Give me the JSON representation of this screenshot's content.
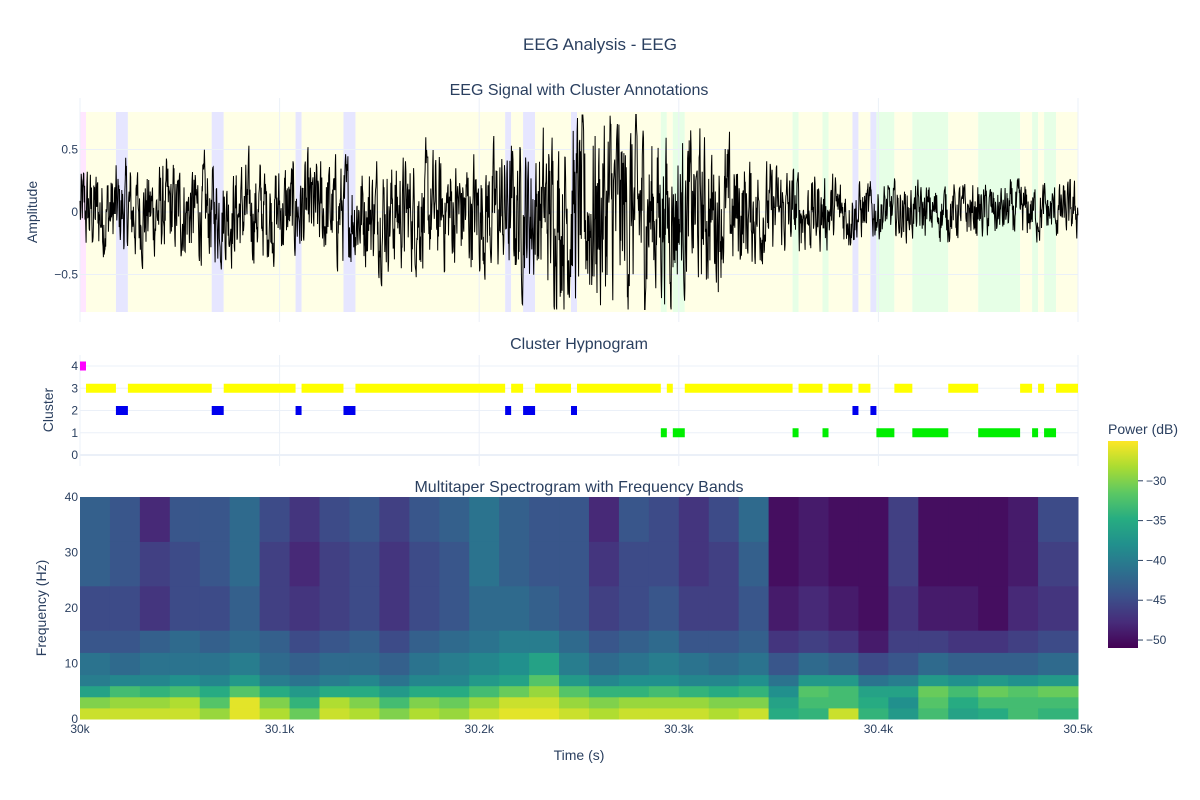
{
  "figure_title": "EEG Analysis - EEG",
  "x_axis": {
    "label": "Time (s)",
    "range": [
      30000,
      30500
    ],
    "ticks": [
      {
        "value": 30000,
        "label": "30k"
      },
      {
        "value": 30100,
        "label": "30.1k"
      },
      {
        "value": 30200,
        "label": "30.2k"
      },
      {
        "value": 30300,
        "label": "30.3k"
      },
      {
        "value": 30400,
        "label": "30.4k"
      },
      {
        "value": 30500,
        "label": "30.5k"
      }
    ]
  },
  "colors": {
    "cluster_0": "#d0d0ff",
    "cluster_1": "#00ee00",
    "cluster_2": "#0000ee",
    "cluster_3": "#ffff00",
    "cluster_4": "#ff00ff",
    "shade_1": "#e6ffe6",
    "shade_2": "#e6e6ff",
    "shade_3": "#ffffe6",
    "shade_4": "#ffe6ff",
    "signal": "#000000",
    "title": "#2a3f5f",
    "grid": "#ebf0f8"
  },
  "chart_data": [
    {
      "type": "line",
      "title": "EEG Signal with Cluster Annotations",
      "xlabel": "",
      "ylabel": "Amplitude",
      "ylim": [
        -0.8,
        0.8
      ],
      "yticks": [
        {
          "value": 0.5,
          "label": "0.5"
        },
        {
          "value": 0,
          "label": "0"
        },
        {
          "value": -0.5,
          "label": "−0.5"
        }
      ],
      "series_description_amplitude_envelope": [
        [
          30000,
          0.3
        ],
        [
          30100,
          0.32
        ],
        [
          30200,
          0.38
        ],
        [
          30230,
          0.5
        ],
        [
          30260,
          0.7
        ],
        [
          30290,
          0.55
        ],
        [
          30320,
          0.45
        ],
        [
          30345,
          0.3
        ],
        [
          30400,
          0.18
        ],
        [
          30500,
          0.18
        ]
      ],
      "grid": true
    },
    {
      "type": "scatter",
      "title": "Cluster Hypnogram",
      "xlabel": "",
      "ylabel": "Cluster",
      "ylim": [
        0,
        4
      ],
      "yticks": [
        {
          "value": 4,
          "label": "4"
        },
        {
          "value": 3,
          "label": "3"
        },
        {
          "value": 2,
          "label": "2"
        },
        {
          "value": 1,
          "label": "1"
        },
        {
          "value": 0,
          "label": "0"
        }
      ],
      "segments": [
        {
          "start": 30000,
          "end": 30003,
          "cluster": 4
        },
        {
          "start": 30003,
          "end": 30018,
          "cluster": 3
        },
        {
          "start": 30018,
          "end": 30024,
          "cluster": 2
        },
        {
          "start": 30024,
          "end": 30066,
          "cluster": 3
        },
        {
          "start": 30066,
          "end": 30072,
          "cluster": 2
        },
        {
          "start": 30072,
          "end": 30108,
          "cluster": 3
        },
        {
          "start": 30108,
          "end": 30111,
          "cluster": 2
        },
        {
          "start": 30111,
          "end": 30132,
          "cluster": 3
        },
        {
          "start": 30132,
          "end": 30138,
          "cluster": 2
        },
        {
          "start": 30138,
          "end": 30213,
          "cluster": 3
        },
        {
          "start": 30213,
          "end": 30216,
          "cluster": 2
        },
        {
          "start": 30216,
          "end": 30222,
          "cluster": 3
        },
        {
          "start": 30222,
          "end": 30228,
          "cluster": 2
        },
        {
          "start": 30228,
          "end": 30246,
          "cluster": 3
        },
        {
          "start": 30246,
          "end": 30249,
          "cluster": 2
        },
        {
          "start": 30249,
          "end": 30291,
          "cluster": 3
        },
        {
          "start": 30291,
          "end": 30294,
          "cluster": 1
        },
        {
          "start": 30294,
          "end": 30297,
          "cluster": 3
        },
        {
          "start": 30297,
          "end": 30303,
          "cluster": 1
        },
        {
          "start": 30303,
          "end": 30357,
          "cluster": 3
        },
        {
          "start": 30357,
          "end": 30360,
          "cluster": 1
        },
        {
          "start": 30360,
          "end": 30372,
          "cluster": 3
        },
        {
          "start": 30372,
          "end": 30375,
          "cluster": 1
        },
        {
          "start": 30375,
          "end": 30387,
          "cluster": 3
        },
        {
          "start": 30387,
          "end": 30390,
          "cluster": 2
        },
        {
          "start": 30390,
          "end": 30396,
          "cluster": 3
        },
        {
          "start": 30396,
          "end": 30399,
          "cluster": 2
        },
        {
          "start": 30399,
          "end": 30408,
          "cluster": 1
        },
        {
          "start": 30408,
          "end": 30417,
          "cluster": 3
        },
        {
          "start": 30417,
          "end": 30435,
          "cluster": 1
        },
        {
          "start": 30435,
          "end": 30450,
          "cluster": 3
        },
        {
          "start": 30450,
          "end": 30471,
          "cluster": 1
        },
        {
          "start": 30471,
          "end": 30477,
          "cluster": 3
        },
        {
          "start": 30477,
          "end": 30480,
          "cluster": 1
        },
        {
          "start": 30480,
          "end": 30483,
          "cluster": 3
        },
        {
          "start": 30483,
          "end": 30489,
          "cluster": 1
        },
        {
          "start": 30489,
          "end": 30500,
          "cluster": 3
        }
      ],
      "grid": true
    },
    {
      "type": "heatmap",
      "title": "Multitaper Spectrogram with Frequency Bands",
      "xlabel": "Time (s)",
      "ylabel": "Frequency (Hz)",
      "ylim": [
        0,
        40
      ],
      "yticks": [
        {
          "value": 40,
          "label": "40"
        },
        {
          "value": 30,
          "label": "30"
        },
        {
          "value": 20,
          "label": "20"
        },
        {
          "value": 10,
          "label": "10"
        },
        {
          "value": 0,
          "label": "0"
        }
      ],
      "time_bins": [
        30000,
        30015,
        30030,
        30045,
        30060,
        30075,
        30090,
        30105,
        30120,
        30135,
        30150,
        30165,
        30180,
        30195,
        30210,
        30225,
        30240,
        30255,
        30270,
        30285,
        30300,
        30315,
        30330,
        30345,
        30360,
        30375,
        30390,
        30405,
        30420,
        30435,
        30450,
        30465,
        30480,
        30500
      ],
      "freq_bands_hz": [
        0,
        2,
        4,
        6,
        8,
        12,
        16,
        24,
        32,
        40
      ],
      "power_db": [
        [
          -27,
          -30,
          -36,
          -40,
          -41,
          -44,
          -45,
          -43,
          -43
        ],
        [
          -27,
          -29,
          -33,
          -39,
          -42,
          -44,
          -45,
          -44,
          -44
        ],
        [
          -27,
          -29,
          -34,
          -39,
          -41,
          -43,
          -47,
          -46,
          -48
        ],
        [
          -27,
          -28,
          -33,
          -38,
          -41,
          -42,
          -45,
          -45,
          -44
        ],
        [
          -29,
          -32,
          -35,
          -39,
          -41,
          -43,
          -45,
          -44,
          -44
        ],
        [
          -26,
          -26,
          -32,
          -37,
          -40,
          -42,
          -43,
          -42,
          -42
        ],
        [
          -28,
          -30,
          -35,
          -40,
          -42,
          -43,
          -46,
          -46,
          -45
        ],
        [
          -31,
          -34,
          -37,
          -41,
          -43,
          -45,
          -47,
          -48,
          -47
        ],
        [
          -27,
          -28,
          -35,
          -40,
          -42,
          -44,
          -46,
          -46,
          -45
        ],
        [
          -28,
          -30,
          -35,
          -39,
          -42,
          -43,
          -45,
          -45,
          -44
        ],
        [
          -30,
          -33,
          -37,
          -41,
          -43,
          -45,
          -47,
          -47,
          -46
        ],
        [
          -28,
          -30,
          -35,
          -39,
          -41,
          -43,
          -45,
          -45,
          -44
        ],
        [
          -29,
          -31,
          -35,
          -39,
          -40,
          -42,
          -44,
          -44,
          -43
        ],
        [
          -27,
          -29,
          -33,
          -37,
          -39,
          -41,
          -42,
          -41,
          -41
        ],
        [
          -26,
          -27,
          -31,
          -36,
          -38,
          -40,
          -42,
          -43,
          -43
        ],
        [
          -26,
          -27,
          -29,
          -32,
          -36,
          -40,
          -43,
          -44,
          -44
        ],
        [
          -27,
          -29,
          -32,
          -37,
          -40,
          -42,
          -44,
          -44,
          -44
        ],
        [
          -28,
          -30,
          -34,
          -39,
          -42,
          -44,
          -46,
          -47,
          -48
        ],
        [
          -27,
          -29,
          -34,
          -38,
          -41,
          -43,
          -45,
          -45,
          -44
        ],
        [
          -27,
          -29,
          -33,
          -38,
          -40,
          -42,
          -44,
          -45,
          -45
        ],
        [
          -27,
          -29,
          -34,
          -39,
          -41,
          -44,
          -46,
          -47,
          -47
        ],
        [
          -28,
          -30,
          -35,
          -39,
          -42,
          -44,
          -46,
          -46,
          -45
        ],
        [
          -27,
          -30,
          -34,
          -38,
          -41,
          -43,
          -44,
          -43,
          -42
        ],
        [
          -35,
          -36,
          -38,
          -41,
          -44,
          -47,
          -49,
          -50,
          -50
        ],
        [
          -34,
          -33,
          -32,
          -37,
          -42,
          -46,
          -48,
          -49,
          -49
        ],
        [
          -27,
          -33,
          -33,
          -37,
          -43,
          -47,
          -49,
          -50,
          -50
        ],
        [
          -34,
          -35,
          -36,
          -41,
          -45,
          -49,
          -50,
          -50,
          -50
        ],
        [
          -37,
          -38,
          -36,
          -40,
          -44,
          -46,
          -47,
          -46,
          -46
        ],
        [
          -33,
          -32,
          -31,
          -37,
          -42,
          -46,
          -49,
          -50,
          -50
        ],
        [
          -36,
          -35,
          -33,
          -38,
          -43,
          -47,
          -49,
          -50,
          -50
        ],
        [
          -35,
          -33,
          -31,
          -37,
          -43,
          -47,
          -50,
          -50,
          -50
        ],
        [
          -33,
          -33,
          -32,
          -38,
          -43,
          -46,
          -48,
          -49,
          -49
        ],
        [
          -34,
          -33,
          -31,
          -37,
          -42,
          -45,
          -47,
          -46,
          -45
        ],
        [
          -33,
          -30,
          -29,
          -36,
          -42,
          -46,
          -48,
          -50,
          -50
        ]
      ],
      "colorbar": {
        "title": "Power (dB)",
        "range": [
          -51,
          -25
        ],
        "ticks": [
          {
            "value": -30,
            "label": "−30"
          },
          {
            "value": -35,
            "label": "−35"
          },
          {
            "value": -40,
            "label": "−40"
          },
          {
            "value": -45,
            "label": "−45"
          },
          {
            "value": -50,
            "label": "−50"
          }
        ],
        "colorscale": [
          "#440154",
          "#472c7a",
          "#3b518b",
          "#2c718e",
          "#21908d",
          "#27ad81",
          "#5cc863",
          "#aadc32",
          "#fde725"
        ]
      }
    }
  ]
}
